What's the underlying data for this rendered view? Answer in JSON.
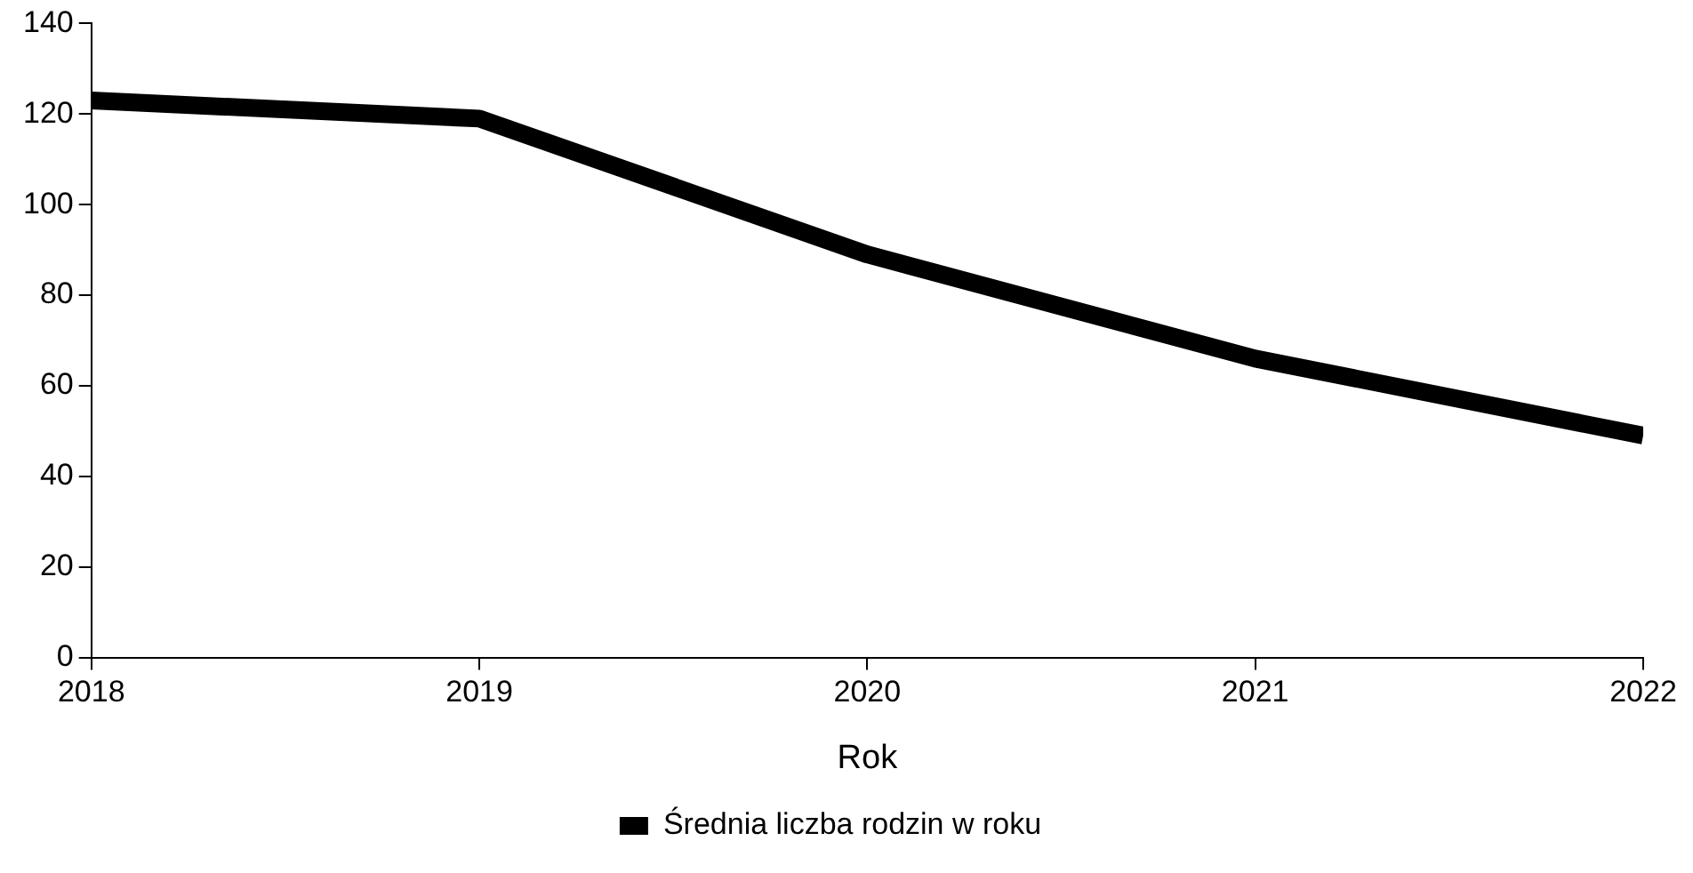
{
  "chart_data": {
    "type": "line",
    "xlabel": "Rok",
    "x": [
      2018,
      2019,
      2020,
      2021,
      2022
    ],
    "series": [
      {
        "name": "Średnia liczba rodzin w roku",
        "color": "#000000",
        "values": [
          123,
          119,
          89,
          66,
          49
        ]
      }
    ],
    "xlim": [
      2018,
      2022
    ],
    "xticks": [
      2018,
      2019,
      2020,
      2021,
      2022
    ],
    "ylim": [
      0,
      140
    ],
    "yticks": [
      0,
      20,
      40,
      60,
      80,
      100,
      120,
      140
    ],
    "grid": false,
    "legend": "bottom",
    "marker": "none",
    "line_style": "solid"
  }
}
